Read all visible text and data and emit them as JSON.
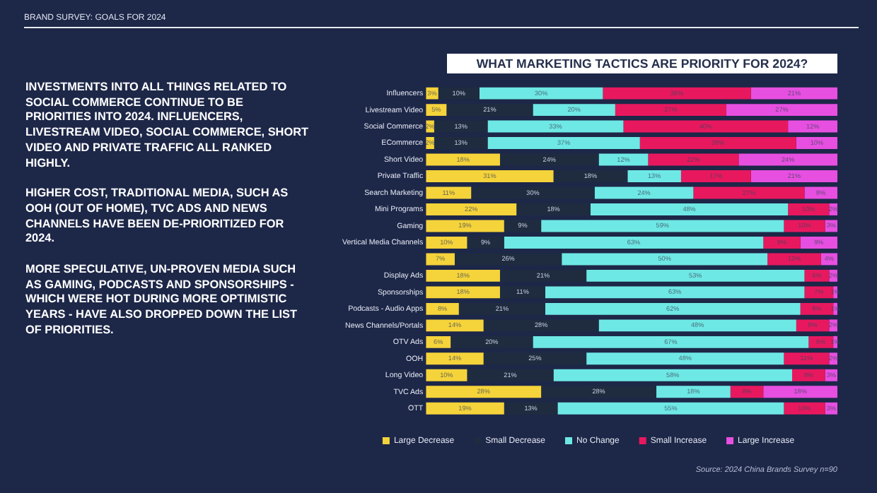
{
  "chart_data": {
    "type": "bar",
    "orientation": "horizontal",
    "stacked": true,
    "title": "WHAT MARKETING TACTICS ARE PRIORITY FOR 2024?",
    "categories": [
      "Influencers",
      "Livestream Video",
      "Social Commerce",
      "ECommerce",
      "Short Video",
      "Private Traffic",
      "Search Marketing",
      "Mini Programs",
      "Gaming",
      "Vertical Media Channels",
      null,
      "Display Ads",
      "Sponsorships",
      "Podcasts - Audio Apps",
      "News Channels/Portals",
      "OTV Ads",
      "OOH",
      "Long Video",
      "TVC Ads",
      "OTT"
    ],
    "series": [
      {
        "name": "Large Decrease",
        "color": "#f5d33a",
        "values": [
          3,
          5,
          2,
          2,
          18,
          31,
          11,
          22,
          19,
          10,
          7,
          18,
          18,
          8,
          14,
          6,
          14,
          10,
          28,
          19
        ],
        "value_labels": [
          "3%",
          "5%",
          "2%",
          "2%",
          "18%",
          "31%",
          "11%",
          "22%",
          "19%",
          "10%",
          "7%",
          "18%",
          "18%",
          "8%",
          "14%",
          "6%",
          "14%",
          "10%",
          "28%",
          "19%"
        ]
      },
      {
        "name": "Small Decrease",
        "color": "#1f2c40",
        "values": [
          10,
          21,
          13,
          13,
          24,
          18,
          30,
          18,
          9,
          9,
          26,
          21,
          11,
          21,
          28,
          20,
          25,
          21,
          28,
          13
        ],
        "value_labels": [
          "10%",
          "21%",
          "13%",
          "13%",
          "24%",
          "18%",
          "30%",
          "18%",
          "9%",
          "9%",
          "26%",
          "21%",
          "11%",
          "21%",
          "28%",
          "20%",
          "25%",
          "21%",
          "28%",
          "13%"
        ]
      },
      {
        "name": "No Change",
        "color": "#6ee8e4",
        "values": [
          30,
          20,
          33,
          37,
          12,
          13,
          24,
          48,
          59,
          63,
          50,
          53,
          63,
          62,
          48,
          67,
          48,
          58,
          18,
          55
        ],
        "value_labels": [
          "30%",
          "20%",
          "33%",
          "37%",
          "12%",
          "13%",
          "24%",
          "48%",
          "59%",
          "63%",
          "50%",
          "53%",
          "63%",
          "62%",
          "48%",
          "67%",
          "48%",
          "58%",
          "18%",
          "55%"
        ]
      },
      {
        "name": "Small Increase",
        "color": "#e8185f",
        "values": [
          36,
          27,
          40,
          38,
          22,
          17,
          27,
          10,
          10,
          9,
          13,
          6,
          7,
          8,
          8,
          6,
          11,
          8,
          8,
          10
        ],
        "value_labels": [
          "36%",
          "27%",
          "40%",
          "38%",
          "22%",
          "17%",
          "27%",
          "10%",
          "10%",
          "9%",
          "13%",
          "6%",
          "7%",
          "8%",
          "8%",
          "6%",
          "11%",
          "8%",
          "8%",
          "10%"
        ]
      },
      {
        "name": "Large Increase",
        "color": "#e74fe0",
        "values": [
          21,
          27,
          12,
          10,
          24,
          21,
          8,
          2,
          3,
          9,
          4,
          2,
          1,
          1,
          2,
          1,
          2,
          3,
          18,
          3
        ],
        "value_labels": [
          "21%",
          "27%",
          "12%",
          "10%",
          "24%",
          "21%",
          "8%",
          "2%",
          "3%",
          "9%",
          "4%",
          "2%",
          "1%",
          "1%",
          "2%",
          "1%",
          "2%",
          "3%",
          "18%",
          "3%"
        ]
      }
    ],
    "tick_labels": "y",
    "legend": "bottom",
    "annotations": [
      "BRAND SURVEY: GOALS FOR 2024",
      "INVESTMENTS INTO ALL THINGS RELATED TO SOCIAL COMMERCE CONTINUE TO BE PRIORITIES INTO 2024. INFLUENCERS, LIVESTREAM VIDEO, SOCIAL COMMERCE, SHORT VIDEO AND PRIVATE TRAFFIC ALL RANKED HIGHLY.",
      "HIGHER COST, TRADITIONAL MEDIA, SUCH AS OOH (OUT OF HOME), TVC ADS AND NEWS CHANNELS HAVE BEEN DE-PRIORITIZED FOR 2024.",
      "MORE SPECULATIVE, UN-PROVEN MEDIA SUCH AS GAMING, PODCASTS AND SPONSORSHIPS - WHICH WERE HOT DURING MORE OPTIMISTIC YEARS - HAVE ALSO DROPPED DOWN THE LIST OF PRIORITIES.",
      "Source: 2024 China Brands Survey n=90"
    ]
  }
}
